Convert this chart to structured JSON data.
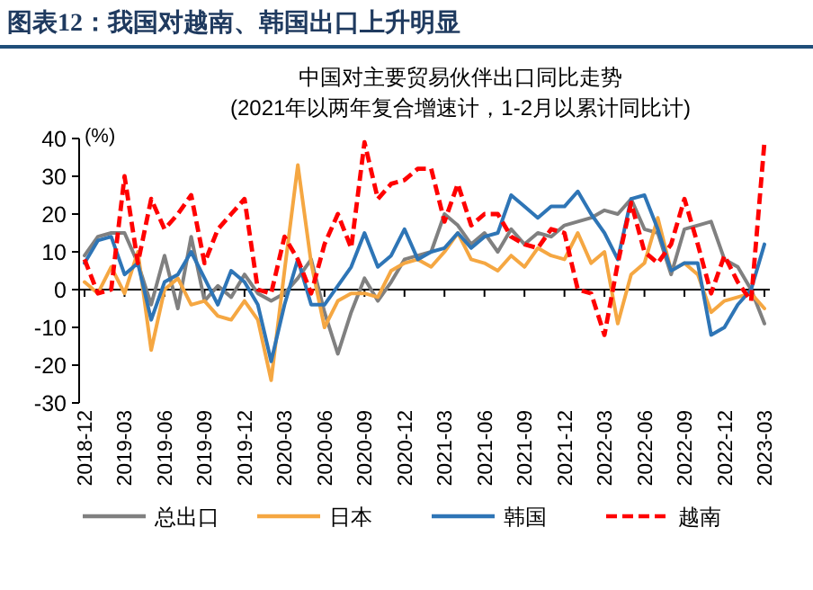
{
  "chart_data": {
    "type": "line",
    "title": "图表12：我国对越南、韩国出口上升明显",
    "subtitle": "中国对主要贸易伙伴出口同比走势\n(2021年以两年复合增速计，1-2月以累计同比计)",
    "ylabel": "(%)",
    "categories": [
      "2018-12",
      null,
      null,
      "2019-03",
      null,
      null,
      "2019-06",
      null,
      null,
      "2019-09",
      null,
      null,
      "2019-12",
      null,
      null,
      "2020-03",
      null,
      null,
      "2020-06",
      null,
      null,
      "2020-09",
      null,
      null,
      "2020-12",
      null,
      null,
      "2021-03",
      null,
      null,
      "2021-06",
      null,
      null,
      "2021-09",
      null,
      null,
      "2021-12",
      null,
      null,
      "2022-03",
      null,
      null,
      "2022-06",
      null,
      null,
      "2022-09",
      null,
      null,
      "2022-12",
      null,
      null,
      "2023-03"
    ],
    "ylim": [
      -30,
      40
    ],
    "yticks": [
      -30,
      -20,
      -10,
      0,
      10,
      20,
      30,
      40
    ],
    "legend": "bottom",
    "series": [
      {
        "name": "总出口",
        "color": "#808080",
        "line_style": "solid",
        "values": [
          9,
          14,
          15,
          15,
          7,
          -4,
          9,
          -5,
          14,
          -3,
          1,
          -2,
          4,
          -1,
          -3,
          -1,
          3,
          8,
          -6,
          -17,
          -6,
          3,
          -3,
          2,
          8,
          9,
          10,
          20,
          17,
          12,
          15,
          10,
          16,
          12,
          15,
          14,
          17,
          18,
          19,
          21,
          20,
          24,
          16,
          15,
          4,
          16,
          17,
          18,
          8,
          6,
          0,
          -9
        ]
      },
      {
        "name": "日本",
        "color": "#f5a742",
        "line_style": "solid",
        "values": [
          2,
          -1,
          6,
          -1,
          10,
          -16,
          0,
          3,
          -4,
          -3,
          -7,
          -8,
          -3,
          -8,
          -24,
          5,
          33,
          7,
          -10,
          -3,
          -1,
          -1,
          -2,
          5,
          7,
          8,
          6,
          10,
          15,
          8,
          7,
          5,
          9,
          6,
          11,
          9,
          8,
          15,
          7,
          10,
          -9,
          4,
          7,
          19,
          5,
          7,
          4,
          -6,
          -3,
          -2,
          -1,
          -5
        ]
      },
      {
        "name": "韩国",
        "color": "#2e75b6",
        "line_style": "solid",
        "values": [
          7,
          13,
          14,
          4,
          7,
          -8,
          2,
          4,
          10,
          3,
          -4,
          5,
          2,
          -4,
          -19,
          -4,
          8,
          -4,
          -4,
          1,
          6,
          15,
          6,
          9,
          16,
          8,
          10,
          11,
          15,
          11,
          14,
          15,
          25,
          22,
          19,
          22,
          22,
          26,
          20,
          15,
          8,
          24,
          25,
          16,
          5,
          7,
          7,
          -12,
          -10,
          -4,
          0,
          12
        ]
      },
      {
        "name": "越南",
        "color": "#ff0000",
        "line_style": "dashed",
        "values": [
          8,
          -1,
          0,
          30,
          7,
          24,
          16,
          20,
          25,
          7,
          16,
          20,
          24,
          0,
          -1,
          14,
          8,
          -1,
          12,
          20,
          11,
          39,
          24,
          28,
          29,
          32,
          32,
          18,
          28,
          17,
          20,
          20,
          14,
          12,
          11,
          16,
          15,
          0,
          -1,
          -12,
          7,
          23,
          10,
          7,
          12,
          24,
          12,
          -1,
          9,
          2,
          -3,
          39
        ]
      }
    ]
  }
}
